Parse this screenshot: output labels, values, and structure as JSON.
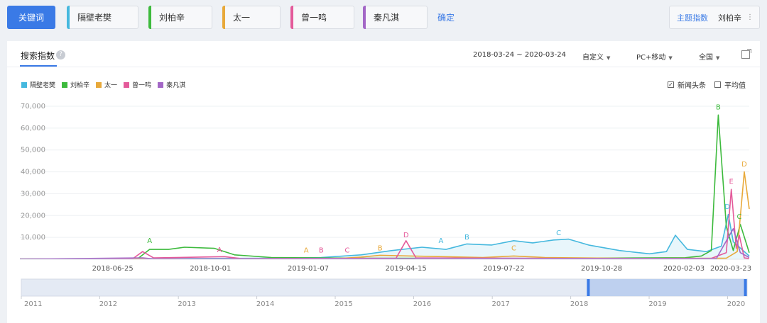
{
  "keyword_bar": {
    "main_label": "关键词",
    "chips": [
      {
        "label": "隔壁老樊",
        "color": "#45b8de"
      },
      {
        "label": "刘柏辛",
        "color": "#3dba3d"
      },
      {
        "label": "太一",
        "color": "#e8a93a"
      },
      {
        "label": "曾一鸣",
        "color": "#e45a9a"
      },
      {
        "label": "秦凡淇",
        "color": "#a367c6"
      }
    ],
    "confirm_label": "确定",
    "topic_label": "主题指数",
    "topic_value": "刘柏辛"
  },
  "panel": {
    "title": "搜索指数",
    "date_range": "2018-03-24 ~ 2020-03-24",
    "custom_label": "自定义",
    "device_label": "PC+移动",
    "region_label": "全国",
    "checkbox_news": "新闻头条",
    "checkbox_avg": "平均值",
    "news_checked": true,
    "avg_checked": false
  },
  "chart_data": {
    "type": "line",
    "title": "",
    "xlabel": "",
    "ylabel": "",
    "ylim": [
      0,
      70000
    ],
    "y_ticks": [
      "70,000",
      "60,000",
      "50,000",
      "40,000",
      "30,000",
      "20,000",
      "10,000"
    ],
    "y_tick_values": [
      70000,
      60000,
      50000,
      40000,
      30000,
      20000,
      10000
    ],
    "x_range": [
      "2018-03-24",
      "2020-03-24"
    ],
    "x_ticks": [
      "2018-06-25",
      "2018-10-01",
      "2019-01-07",
      "2019-04-15",
      "2019-07-22",
      "2019-10-28",
      "2020-02-03",
      "2020-03-23"
    ],
    "legend_position": "top-left",
    "series": [
      {
        "name": "隔壁老樊",
        "color": "#45b8de",
        "points": [
          [
            "2018-03-24",
            200
          ],
          [
            "2018-08-01",
            300
          ],
          [
            "2018-12-01",
            500
          ],
          [
            "2019-01-20",
            800
          ],
          [
            "2019-03-01",
            2000
          ],
          [
            "2019-04-01",
            4000
          ],
          [
            "2019-05-01",
            5500
          ],
          [
            "2019-05-25",
            4500
          ],
          [
            "2019-06-15",
            7000
          ],
          [
            "2019-07-10",
            6500
          ],
          [
            "2019-08-01",
            8500
          ],
          [
            "2019-08-20",
            7500
          ],
          [
            "2019-09-10",
            8800
          ],
          [
            "2019-09-25",
            9200
          ],
          [
            "2019-10-15",
            6500
          ],
          [
            "2019-11-15",
            4000
          ],
          [
            "2019-12-15",
            2500
          ],
          [
            "2020-01-01",
            3500
          ],
          [
            "2020-01-10",
            11000
          ],
          [
            "2020-01-22",
            4500
          ],
          [
            "2020-02-10",
            3500
          ],
          [
            "2020-02-25",
            6000
          ],
          [
            "2020-03-03",
            20500
          ],
          [
            "2020-03-08",
            8000
          ],
          [
            "2020-03-24",
            1500
          ]
        ]
      },
      {
        "name": "刘柏辛",
        "color": "#3dba3d",
        "points": [
          [
            "2018-03-24",
            100
          ],
          [
            "2018-07-20",
            200
          ],
          [
            "2018-08-01",
            4500
          ],
          [
            "2018-08-20",
            4500
          ],
          [
            "2018-09-05",
            5500
          ],
          [
            "2018-10-05",
            5000
          ],
          [
            "2018-10-25",
            2000
          ],
          [
            "2018-12-01",
            800
          ],
          [
            "2019-03-01",
            500
          ],
          [
            "2019-09-01",
            400
          ],
          [
            "2020-01-20",
            700
          ],
          [
            "2020-02-05",
            1500
          ],
          [
            "2020-02-15",
            4000
          ],
          [
            "2020-02-22",
            66000
          ],
          [
            "2020-03-01",
            15000
          ],
          [
            "2020-03-08",
            4000
          ],
          [
            "2020-03-15",
            16000
          ],
          [
            "2020-03-24",
            3000
          ]
        ]
      },
      {
        "name": "太一",
        "color": "#e8a93a",
        "points": [
          [
            "2018-03-24",
            100
          ],
          [
            "2019-02-01",
            200
          ],
          [
            "2019-03-01",
            1000
          ],
          [
            "2019-03-20",
            1800
          ],
          [
            "2019-04-20",
            1500
          ],
          [
            "2019-07-01",
            800
          ],
          [
            "2019-08-01",
            1500
          ],
          [
            "2019-09-01",
            800
          ],
          [
            "2019-12-01",
            400
          ],
          [
            "2020-03-01",
            500
          ],
          [
            "2020-03-12",
            3500
          ],
          [
            "2020-03-19",
            40000
          ],
          [
            "2020-03-24",
            23000
          ]
        ]
      },
      {
        "name": "曾一鸣",
        "color": "#e45a9a",
        "points": [
          [
            "2018-03-24",
            100
          ],
          [
            "2018-07-15",
            200
          ],
          [
            "2018-07-25",
            3500
          ],
          [
            "2018-08-05",
            600
          ],
          [
            "2018-10-15",
            1200
          ],
          [
            "2018-11-01",
            300
          ],
          [
            "2019-04-05",
            500
          ],
          [
            "2019-04-15",
            8500
          ],
          [
            "2019-04-25",
            600
          ],
          [
            "2019-12-01",
            300
          ],
          [
            "2020-02-15",
            400
          ],
          [
            "2020-03-01",
            3000
          ],
          [
            "2020-03-06",
            32000
          ],
          [
            "2020-03-11",
            5000
          ],
          [
            "2020-03-14",
            11000
          ],
          [
            "2020-03-19",
            600
          ],
          [
            "2020-03-24",
            300
          ]
        ]
      },
      {
        "name": "秦凡淇",
        "color": "#a367c6",
        "points": [
          [
            "2018-03-24",
            100
          ],
          [
            "2018-07-25",
            600
          ],
          [
            "2018-08-05",
            200
          ],
          [
            "2019-04-10",
            300
          ],
          [
            "2020-02-20",
            300
          ],
          [
            "2020-03-08",
            14000
          ],
          [
            "2020-03-15",
            3000
          ],
          [
            "2020-03-24",
            800
          ]
        ]
      }
    ],
    "annotations": [
      {
        "text": "A",
        "color": "#3dba3d",
        "date": "2018-08-01",
        "value": 7500
      },
      {
        "text": "A",
        "color": "#e45a9a",
        "date": "2018-10-10",
        "value": 3300
      },
      {
        "text": "A",
        "color": "#e8a93a",
        "date": "2019-01-05",
        "value": 3000
      },
      {
        "text": "B",
        "color": "#e45a9a",
        "date": "2019-01-20",
        "value": 3000
      },
      {
        "text": "C",
        "color": "#e45a9a",
        "date": "2019-02-15",
        "value": 3000
      },
      {
        "text": "B",
        "color": "#e8a93a",
        "date": "2019-03-20",
        "value": 4000
      },
      {
        "text": "D",
        "color": "#e45a9a",
        "date": "2019-04-15",
        "value": 10000
      },
      {
        "text": "A",
        "color": "#45b8de",
        "date": "2019-05-20",
        "value": 7500
      },
      {
        "text": "B",
        "color": "#45b8de",
        "date": "2019-06-15",
        "value": 9000
      },
      {
        "text": "C",
        "color": "#e8a93a",
        "date": "2019-08-01",
        "value": 4000
      },
      {
        "text": "C",
        "color": "#45b8de",
        "date": "2019-09-15",
        "value": 11000
      },
      {
        "text": "B",
        "color": "#3dba3d",
        "date": "2020-02-22",
        "value": 68500
      },
      {
        "text": "D",
        "color": "#45b8de",
        "date": "2020-03-02",
        "value": 23000
      },
      {
        "text": "E",
        "color": "#e45a9a",
        "date": "2020-03-06",
        "value": 34500
      },
      {
        "text": "C",
        "color": "#3dba3d",
        "date": "2020-03-14",
        "value": 18500
      },
      {
        "text": "D",
        "color": "#e8a93a",
        "date": "2020-03-19",
        "value": 42500
      }
    ],
    "navigator": {
      "years": [
        "2011",
        "2012",
        "2013",
        "2014",
        "2015",
        "2016",
        "2017",
        "2018",
        "2019",
        "2020"
      ],
      "selection": [
        "2018-03-24",
        "2020-03-24"
      ]
    }
  }
}
